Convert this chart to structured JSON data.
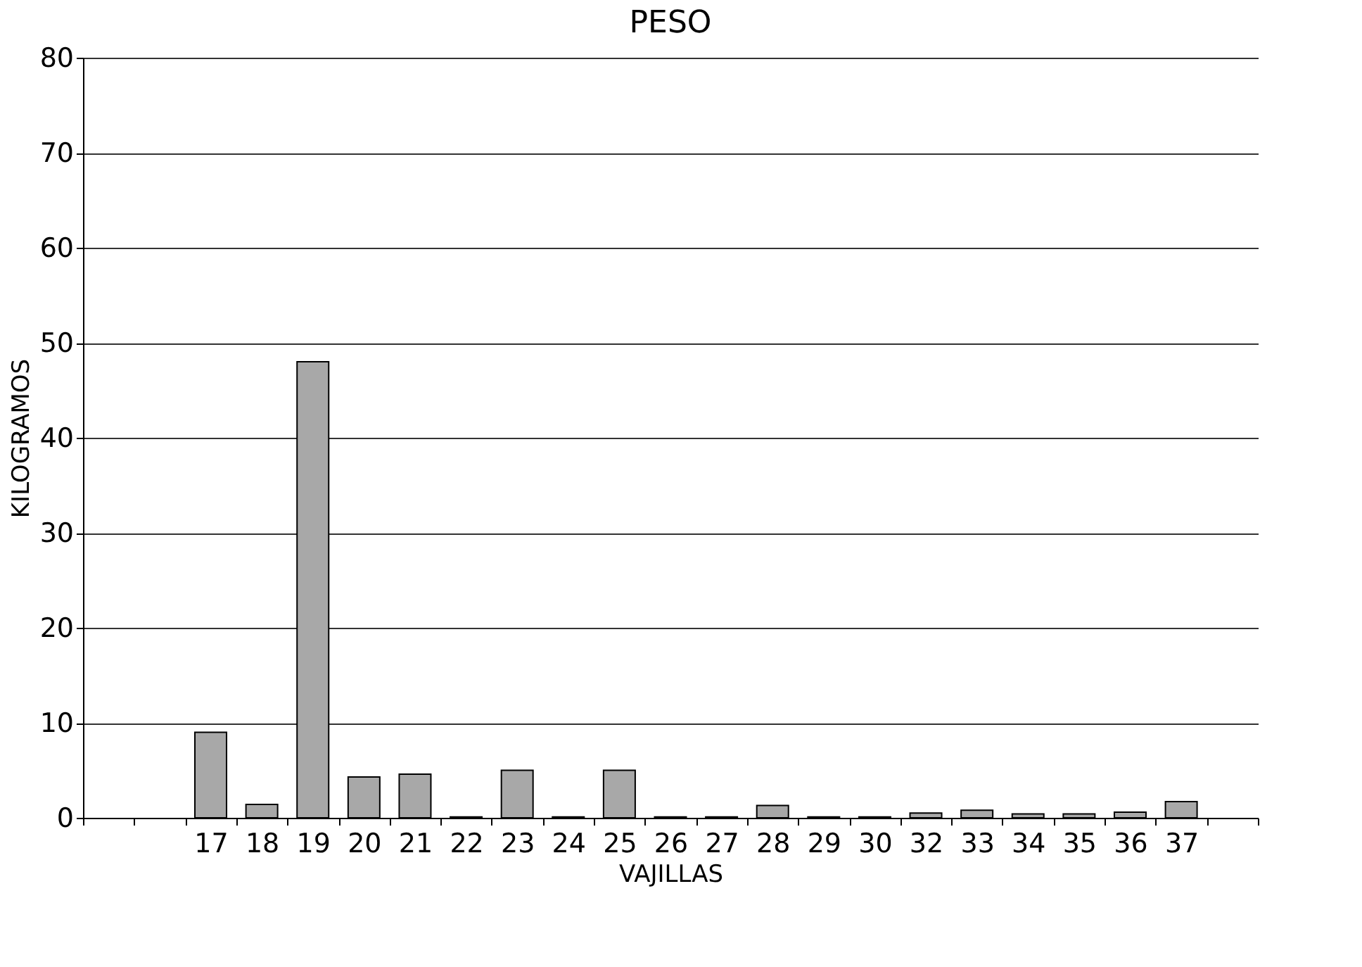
{
  "chart_data": {
    "type": "bar",
    "title": "PESO",
    "xlabel": "VAJILLAS",
    "ylabel": "KILOGRAMOS",
    "categories": [
      null,
      null,
      "17",
      "18",
      "19",
      "20",
      "21",
      "22",
      "23",
      "24",
      "25",
      "26",
      "27",
      "28",
      "29",
      "30",
      "32",
      "33",
      "34",
      "35",
      "36",
      "37",
      null
    ],
    "values": [
      null,
      null,
      9,
      1.4,
      48,
      4.3,
      4.6,
      0.1,
      5,
      0.1,
      5,
      0.1,
      0.1,
      1.3,
      0.1,
      0.1,
      0.5,
      0.8,
      0.4,
      0.4,
      0.6,
      1.7,
      null
    ],
    "color": "#a8a8a8",
    "ylim": [
      0,
      80
    ],
    "yticks": [
      0,
      10,
      20,
      30,
      40,
      50,
      60,
      70,
      80
    ],
    "grid": "y"
  }
}
